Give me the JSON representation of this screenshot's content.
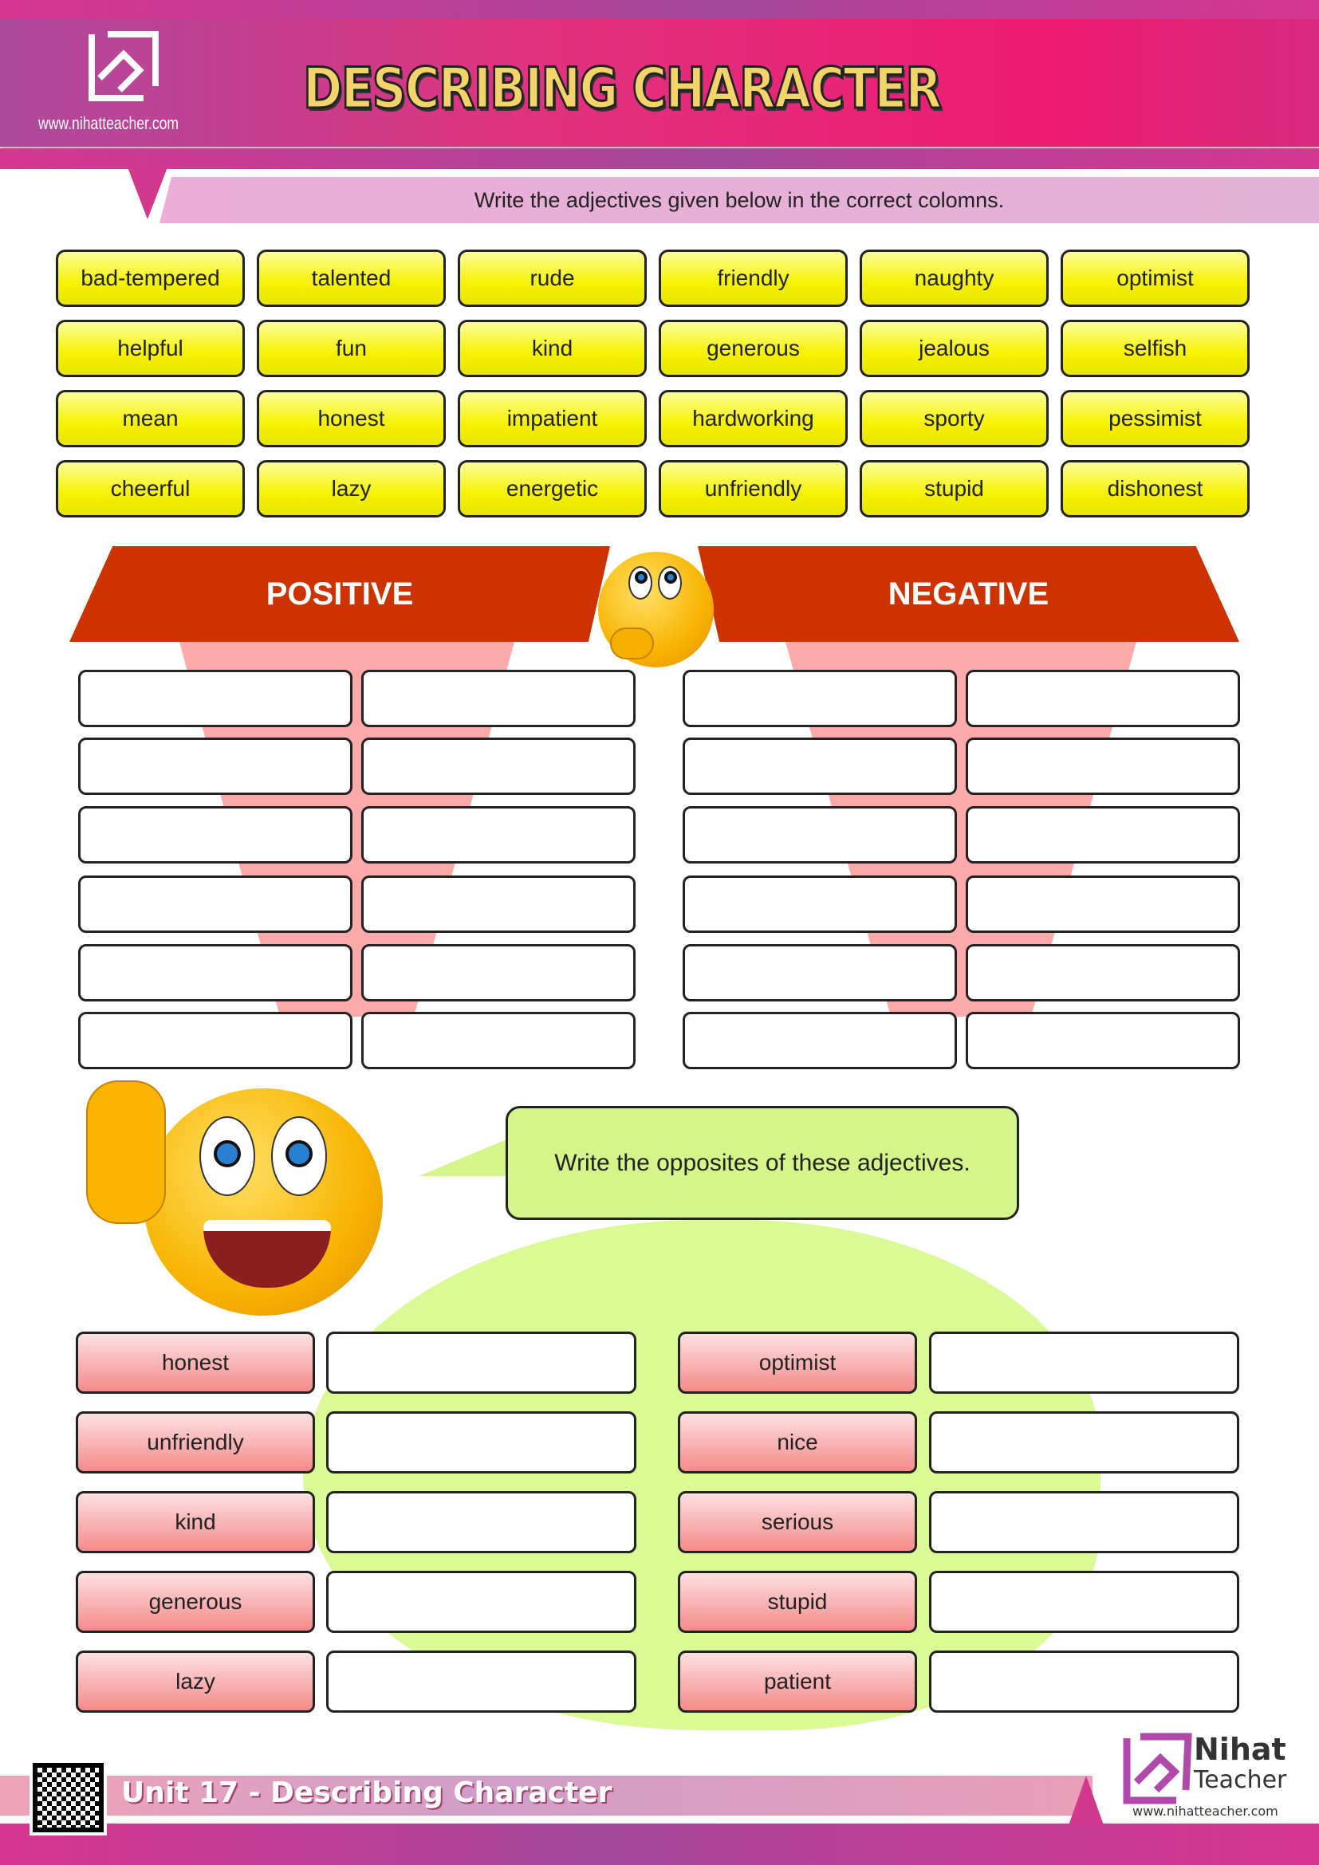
{
  "header": {
    "title": "DESCRIBING CHARACTER",
    "website": "www.nihatteacher.com"
  },
  "instruction1": "Write the adjectives given below in the correct colomns.",
  "word_bank": [
    "bad-tempered",
    "talented",
    "rude",
    "friendly",
    "naughty",
    "optimist",
    "helpful",
    "fun",
    "kind",
    "generous",
    "jealous",
    "selfish",
    "mean",
    "honest",
    "impatient",
    "hardworking",
    "sporty",
    "pessimist",
    "cheerful",
    "lazy",
    "energetic",
    "unfriendly",
    "stupid",
    "dishonest"
  ],
  "columns": {
    "positive": "POSITIVE",
    "negative": "NEGATIVE"
  },
  "instruction2": "Write the opposites of these adjectives.",
  "opposites_left": [
    "honest",
    "unfriendly",
    "kind",
    "generous",
    "lazy"
  ],
  "opposites_right": [
    "optimist",
    "nice",
    "serious",
    "stupid",
    "patient"
  ],
  "footer": {
    "unit": "Unit 17 - Describing Character",
    "brand_line1": "Nihat",
    "brand_line2": "Teacher",
    "brand_site": "www.nihatteacher.com"
  },
  "colors": {
    "header": "#ee1a72",
    "word_bg": "#f5f200",
    "banner": "#cc3300",
    "label_bg": "#f58a8a",
    "bubble": "#d3f58a"
  }
}
